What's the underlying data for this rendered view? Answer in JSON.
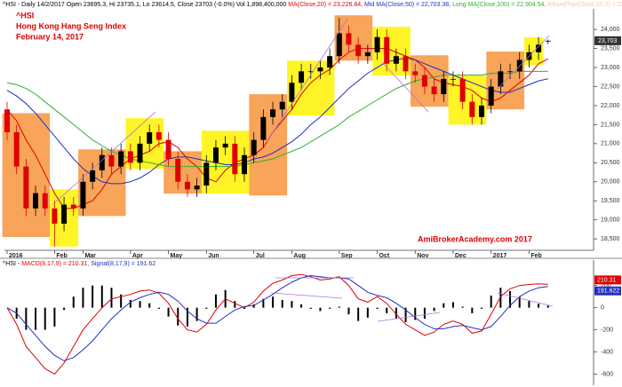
{
  "chart_data": [
    {
      "type": "candlestick",
      "header": [
        {
          "text": "^HSI - Daily 14/2/2017 Open 23695.3, Hi 23735.1, Lo 23614.5, Close 23703 (-0.0%) Vol 1,898,400,000",
          "color": "#000000"
        },
        {
          "text": "MA(Close,20) = 23,226.84,",
          "color": "#e00000"
        },
        {
          "text": "Mid MA(Close,50) = 22,703.38,",
          "color": "#2030c0"
        },
        {
          "text": "Long MA(Close,100) = 22,904.54,",
          "color": "#30b030"
        },
        {
          "text": "BBandTop(Close,20,2) = 23,794.45,",
          "color": "#f5c9a0"
        },
        {
          "text": "BBandBot(Close,20,2) = 22,659",
          "color": "#f5c9a0"
        }
      ],
      "title": [
        "^HSI",
        "Hong Kong Hang Seng Index",
        "February 14, 2017"
      ],
      "watermark": "AmiBrokerAcademy.com  2017",
      "categories": [
        "2016",
        null,
        null,
        null,
        null,
        "Feb",
        null,
        null,
        "Mar",
        null,
        null,
        null,
        null,
        "Apr",
        null,
        null,
        null,
        "May",
        null,
        null,
        null,
        "Jun",
        null,
        null,
        null,
        null,
        "Jul",
        null,
        null,
        null,
        "Aug",
        null,
        null,
        null,
        null,
        "Sep",
        null,
        null,
        null,
        "Oct",
        null,
        null,
        null,
        "Nov",
        null,
        null,
        null,
        "Dec",
        null,
        null,
        null,
        "2017",
        null,
        null,
        null,
        "Feb",
        null,
        null
      ],
      "open": [
        21900,
        21300,
        20400,
        19300,
        19700,
        19300,
        18900,
        19400,
        19300,
        20000,
        20300,
        20700,
        20400,
        20800,
        20500,
        21000,
        21300,
        21100,
        20600,
        20000,
        19800,
        19900,
        20500,
        20900,
        21000,
        20200,
        20700,
        21100,
        21700,
        21900,
        22100,
        22600,
        22900,
        22900,
        23000,
        23300,
        23900,
        23600,
        23300,
        23400,
        23800,
        23100,
        23300,
        22900,
        22800,
        22500,
        22300,
        22700,
        22700,
        22100,
        21700,
        22000,
        22500,
        22900,
        22900,
        23200,
        23400,
        23695.3
      ],
      "high": [
        22100,
        21500,
        20600,
        19900,
        19900,
        19500,
        19600,
        19600,
        20200,
        20500,
        20900,
        20900,
        21000,
        21000,
        21200,
        21500,
        21500,
        21300,
        20800,
        20200,
        20100,
        20700,
        21100,
        21200,
        21200,
        20900,
        21300,
        21900,
        22100,
        22300,
        22800,
        23100,
        23100,
        23200,
        23500,
        24300,
        24100,
        23800,
        23600,
        24000,
        24000,
        23500,
        23500,
        23100,
        23000,
        22700,
        22900,
        22900,
        22900,
        22300,
        22200,
        22700,
        23100,
        23100,
        23400,
        23600,
        23800,
        23735.1
      ],
      "low": [
        21100,
        20200,
        19100,
        19100,
        19100,
        18300,
        18700,
        19100,
        19100,
        19800,
        20100,
        20200,
        20200,
        20300,
        20300,
        20800,
        20900,
        20400,
        19800,
        19600,
        19600,
        19700,
        20300,
        20700,
        20000,
        20000,
        20500,
        20900,
        21500,
        21700,
        21900,
        22400,
        22700,
        22700,
        22800,
        23100,
        23400,
        23100,
        23100,
        23200,
        22900,
        22900,
        22700,
        22600,
        22300,
        22100,
        22100,
        22500,
        21900,
        21500,
        21500,
        21800,
        22300,
        22700,
        22700,
        23000,
        23200,
        23614.5
      ],
      "close": [
        21300,
        20400,
        19300,
        19700,
        19300,
        18900,
        19400,
        19300,
        20000,
        20300,
        20700,
        20400,
        20800,
        20500,
        21000,
        21300,
        21100,
        20600,
        20000,
        19800,
        19900,
        20500,
        20900,
        21000,
        20200,
        20700,
        21100,
        21700,
        21900,
        22100,
        22600,
        22900,
        22900,
        23000,
        23300,
        23900,
        23600,
        23300,
        23400,
        23800,
        23100,
        23300,
        22900,
        22800,
        22500,
        22300,
        22700,
        22700,
        22100,
        21700,
        22000,
        22500,
        22900,
        22900,
        23200,
        23400,
        23600,
        23703
      ],
      "up_color": "#000000",
      "down_color": "#e00000",
      "series": [
        {
          "name": "MA(Close,20)",
          "color": "#e00000",
          "values": [
            21900,
            21600,
            21100,
            20700,
            20200,
            19700,
            19300,
            19300,
            19400,
            19500,
            19800,
            20200,
            20400,
            20600,
            20700,
            20800,
            21000,
            21050,
            20900,
            20600,
            20400,
            20100,
            20000,
            20300,
            20500,
            20600,
            20700,
            20900,
            21300,
            21600,
            21900,
            22300,
            22600,
            22800,
            22950,
            23200,
            23400,
            23500,
            23500,
            23500,
            23500,
            23400,
            23300,
            23200,
            23000,
            22700,
            22600,
            22550,
            22500,
            22400,
            22200,
            22100,
            22200,
            22400,
            22600,
            22800,
            23100,
            23226.84
          ]
        },
        {
          "name": "Mid MA(Close,50)",
          "color": "#2030c0",
          "values": [
            22400,
            22250,
            22050,
            21800,
            21500,
            21200,
            20900,
            20600,
            20350,
            20150,
            20000,
            19950,
            19950,
            20000,
            20100,
            20250,
            20450,
            20600,
            20650,
            20650,
            20600,
            20550,
            20500,
            20450,
            20450,
            20500,
            20600,
            20650,
            20750,
            20900,
            21050,
            21250,
            21500,
            21700,
            21950,
            22200,
            22450,
            22650,
            22850,
            23000,
            23150,
            23200,
            23250,
            23200,
            23100,
            23000,
            22900,
            22800,
            22700,
            22600,
            22500,
            22400,
            22350,
            22350,
            22450,
            22550,
            22650,
            22703.38
          ]
        },
        {
          "name": "Long MA(Close,100)",
          "color": "#30b030",
          "values": [
            22600,
            22550,
            22450,
            22300,
            22100,
            21900,
            21700,
            21500,
            21300,
            21100,
            20950,
            20800,
            20700,
            20600,
            20550,
            20500,
            20450,
            20400,
            20400,
            20400,
            20400,
            20400,
            20400,
            20400,
            20400,
            20450,
            20500,
            20550,
            20600,
            20700,
            20800,
            20900,
            21050,
            21200,
            21350,
            21500,
            21700,
            21850,
            22000,
            22150,
            22300,
            22450,
            22550,
            22650,
            22700,
            22750,
            22800,
            22800,
            22800,
            22800,
            22800,
            22850,
            22850,
            22850,
            22900,
            22900,
            22900,
            22904.54
          ]
        }
      ],
      "boxes": [
        {
          "from": 0,
          "to": 5,
          "low": 18550,
          "high": 21800,
          "color": "#f7943c"
        },
        {
          "from": 5,
          "to": 8,
          "low": 18300,
          "high": 19800,
          "color": "#fff200"
        },
        {
          "from": 8,
          "to": 13,
          "low": 19100,
          "high": 20850,
          "color": "#f7943c"
        },
        {
          "from": 13,
          "to": 17,
          "low": 20340,
          "high": 21670,
          "color": "#fff200"
        },
        {
          "from": 17,
          "to": 21,
          "low": 19690,
          "high": 20800,
          "color": "#f7943c"
        },
        {
          "from": 21,
          "to": 26,
          "low": 19690,
          "high": 21340,
          "color": "#fff200"
        },
        {
          "from": 26,
          "to": 30,
          "low": 19640,
          "high": 22300,
          "color": "#f7943c"
        },
        {
          "from": 30,
          "to": 35,
          "low": 21740,
          "high": 23180,
          "color": "#fff200"
        },
        {
          "from": 35,
          "to": 39,
          "low": 23180,
          "high": 24370,
          "color": "#f7943c"
        },
        {
          "from": 39,
          "to": 43,
          "low": 22790,
          "high": 24070,
          "color": "#fff200"
        },
        {
          "from": 43,
          "to": 47,
          "low": 21970,
          "high": 23320,
          "color": "#f7943c"
        },
        {
          "from": 47,
          "to": 51,
          "low": 21500,
          "high": 22790,
          "color": "#fff200"
        },
        {
          "from": 51,
          "to": 55,
          "low": 21900,
          "high": 23420,
          "color": "#f7943c"
        },
        {
          "from": 55,
          "to": 57,
          "low": 23070,
          "high": 23790,
          "color": "#fff200"
        }
      ],
      "last_label": "23,703",
      "ylim": [
        18200,
        24540
      ],
      "yticks": [
        {
          "value": 18500,
          "label": "18,500"
        },
        {
          "value": 19000,
          "label": "19,000"
        },
        {
          "value": 19500,
          "label": "19,500"
        },
        {
          "value": 20000,
          "label": "20,000"
        },
        {
          "value": 20500,
          "label": "20,500"
        },
        {
          "value": 21000,
          "label": "21,000"
        },
        {
          "value": 21500,
          "label": "21,500"
        },
        {
          "value": 22000,
          "label": "22,000"
        },
        {
          "value": 22500,
          "label": "22,500"
        },
        {
          "value": 23000,
          "label": "23,000"
        },
        {
          "value": 23500,
          "label": "23,500"
        },
        {
          "value": 24000,
          "label": "24,000"
        }
      ]
    },
    {
      "type": "line",
      "header": [
        {
          "text": "^HSI -",
          "color": "#000000"
        },
        {
          "text": "MACD(8,17,9) = 210.31,",
          "color": "#e00000"
        },
        {
          "text": "Signal(8,17,9) = 191.62",
          "color": "#2030c0"
        }
      ],
      "series": [
        {
          "name": "MACD(8,17,9)",
          "color": "#e00000",
          "last_label": "210.31",
          "values": [
            0,
            -150,
            -350,
            -450,
            -550,
            -600,
            -500,
            -350,
            -200,
            -100,
            0,
            80,
            100,
            120,
            150,
            160,
            130,
            40,
            -100,
            -200,
            -220,
            -150,
            -20,
            80,
            40,
            0,
            50,
            150,
            220,
            250,
            290,
            300,
            280,
            250,
            260,
            280,
            200,
            80,
            50,
            100,
            40,
            -60,
            -150,
            -200,
            -250,
            -220,
            -150,
            -120,
            -150,
            -230,
            -210,
            -60,
            100,
            170,
            200,
            210,
            215,
            210.31
          ]
        },
        {
          "name": "Signal(8,17,9)",
          "color": "#2030c0",
          "last_label": "191.622",
          "values": [
            0,
            -50,
            -150,
            -250,
            -350,
            -430,
            -480,
            -450,
            -380,
            -300,
            -200,
            -100,
            -20,
            50,
            90,
            120,
            140,
            120,
            60,
            -30,
            -100,
            -140,
            -140,
            -80,
            -20,
            10,
            20,
            70,
            120,
            180,
            230,
            270,
            290,
            280,
            270,
            270,
            260,
            200,
            140,
            110,
            90,
            40,
            -20,
            -90,
            -150,
            -190,
            -190,
            -170,
            -160,
            -180,
            -200,
            -170,
            -80,
            20,
            100,
            150,
            180,
            191.622
          ]
        }
      ],
      "histogram": [
        0,
        -100,
        -200,
        -200,
        -200,
        -170,
        -20,
        100,
        180,
        200,
        200,
        180,
        120,
        70,
        60,
        40,
        -10,
        -80,
        -160,
        -170,
        -120,
        -10,
        120,
        160,
        60,
        -10,
        30,
        80,
        100,
        70,
        60,
        30,
        -10,
        -30,
        -10,
        10,
        -60,
        -120,
        -90,
        -10,
        -50,
        -100,
        -130,
        -110,
        -100,
        -30,
        40,
        50,
        10,
        -50,
        -10,
        110,
        180,
        150,
        100,
        60,
        35,
        18.69
      ],
      "histogram_color": "#000000",
      "ylim": [
        -700,
        430
      ],
      "yticks": [
        200,
        0,
        -200,
        -400,
        -600
      ]
    }
  ]
}
